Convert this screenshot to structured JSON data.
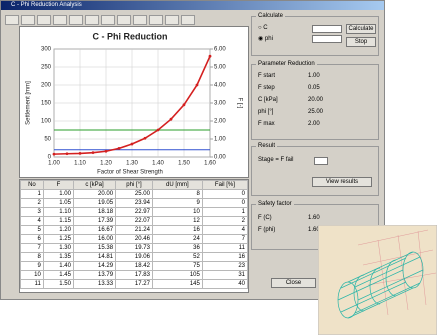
{
  "window": {
    "title": "C - Phi Reduction Analysis"
  },
  "chart_data": {
    "type": "line",
    "title": "C - Phi Reduction",
    "x_label": "Factor of Shear Strength",
    "y_label": "Settlement [mm]",
    "y2_label": "F [-]",
    "x": [
      1.0,
      1.05,
      1.1,
      1.15,
      1.2,
      1.25,
      1.3,
      1.35,
      1.4,
      1.45,
      1.5,
      1.55,
      1.6
    ],
    "series": [
      {
        "color": "#d42020",
        "values": [
          8,
          9,
          10,
          12,
          16,
          24,
          36,
          52,
          75,
          105,
          145,
          200,
          280
        ]
      }
    ],
    "xlim": [
      1.0,
      1.6
    ],
    "xticks": [
      {
        "value": 1.0,
        "label": "1.00"
      },
      {
        "value": 1.1,
        "label": "1.10"
      },
      {
        "value": 1.2,
        "label": "1.20"
      },
      {
        "value": 1.3,
        "label": "1.30"
      },
      {
        "value": 1.4,
        "label": "1.40"
      },
      {
        "value": 1.5,
        "label": "1.50"
      },
      {
        "value": 1.6,
        "label": "1.60"
      }
    ],
    "ylim": [
      0,
      300
    ],
    "yticks": [
      0,
      50,
      100,
      150,
      200,
      250,
      300
    ],
    "y2lim": [
      0,
      6
    ],
    "y2ticks": [
      {
        "value": 0,
        "label": "0.00"
      },
      {
        "value": 1,
        "label": "1.00"
      },
      {
        "value": 2,
        "label": "2.00"
      },
      {
        "value": 3,
        "label": "3.00"
      },
      {
        "value": 4,
        "label": "4.00"
      },
      {
        "value": 5,
        "label": "5.00"
      },
      {
        "value": 6,
        "label": "6.00"
      }
    ],
    "hlines": [
      {
        "value": 75,
        "color": "#2a9d2a"
      },
      {
        "value": 20,
        "color": "#3050d0"
      }
    ],
    "grid": true
  },
  "table": {
    "headers": [
      "No",
      "F",
      "c [kPa]",
      "phi [°]",
      "dU [mm]",
      "Fail [%]"
    ],
    "rows": [
      [
        "1",
        "1.00",
        "20.00",
        "25.00",
        "8",
        "0"
      ],
      [
        "2",
        "1.05",
        "19.05",
        "23.94",
        "9",
        "0"
      ],
      [
        "3",
        "1.10",
        "18.18",
        "22.97",
        "10",
        "1"
      ],
      [
        "4",
        "1.15",
        "17.39",
        "22.07",
        "12",
        "2"
      ],
      [
        "5",
        "1.20",
        "16.67",
        "21.24",
        "16",
        "4"
      ],
      [
        "6",
        "1.25",
        "16.00",
        "20.46",
        "24",
        "7"
      ],
      [
        "7",
        "1.30",
        "15.38",
        "19.73",
        "36",
        "11"
      ],
      [
        "8",
        "1.35",
        "14.81",
        "19.06",
        "52",
        "16"
      ],
      [
        "9",
        "1.40",
        "14.29",
        "18.42",
        "75",
        "23"
      ],
      [
        "10",
        "1.45",
        "13.79",
        "17.83",
        "105",
        "31"
      ],
      [
        "11",
        "1.50",
        "13.33",
        "17.27",
        "145",
        "40"
      ]
    ]
  },
  "panel": {
    "calc": {
      "title": "Calculate",
      "options": [
        "C",
        "phi"
      ],
      "run": "Calculate",
      "stop": "Stop"
    },
    "params": {
      "title": "Parameter Reduction",
      "rows": [
        [
          "F start",
          "1.00"
        ],
        [
          "F step",
          "0.05"
        ],
        [
          "C [kPa]",
          "20.00"
        ],
        [
          "phi [°]",
          "25.00"
        ],
        [
          "F max",
          "2.00"
        ]
      ]
    },
    "result": {
      "title": "Result",
      "stage": "Stage = F fail",
      "view": "View results"
    },
    "safety": {
      "title": "Safety factor",
      "rows": [
        [
          "F (C)",
          "1.60"
        ],
        [
          "F (phi)",
          "1.60"
        ]
      ]
    },
    "close": "Close"
  }
}
